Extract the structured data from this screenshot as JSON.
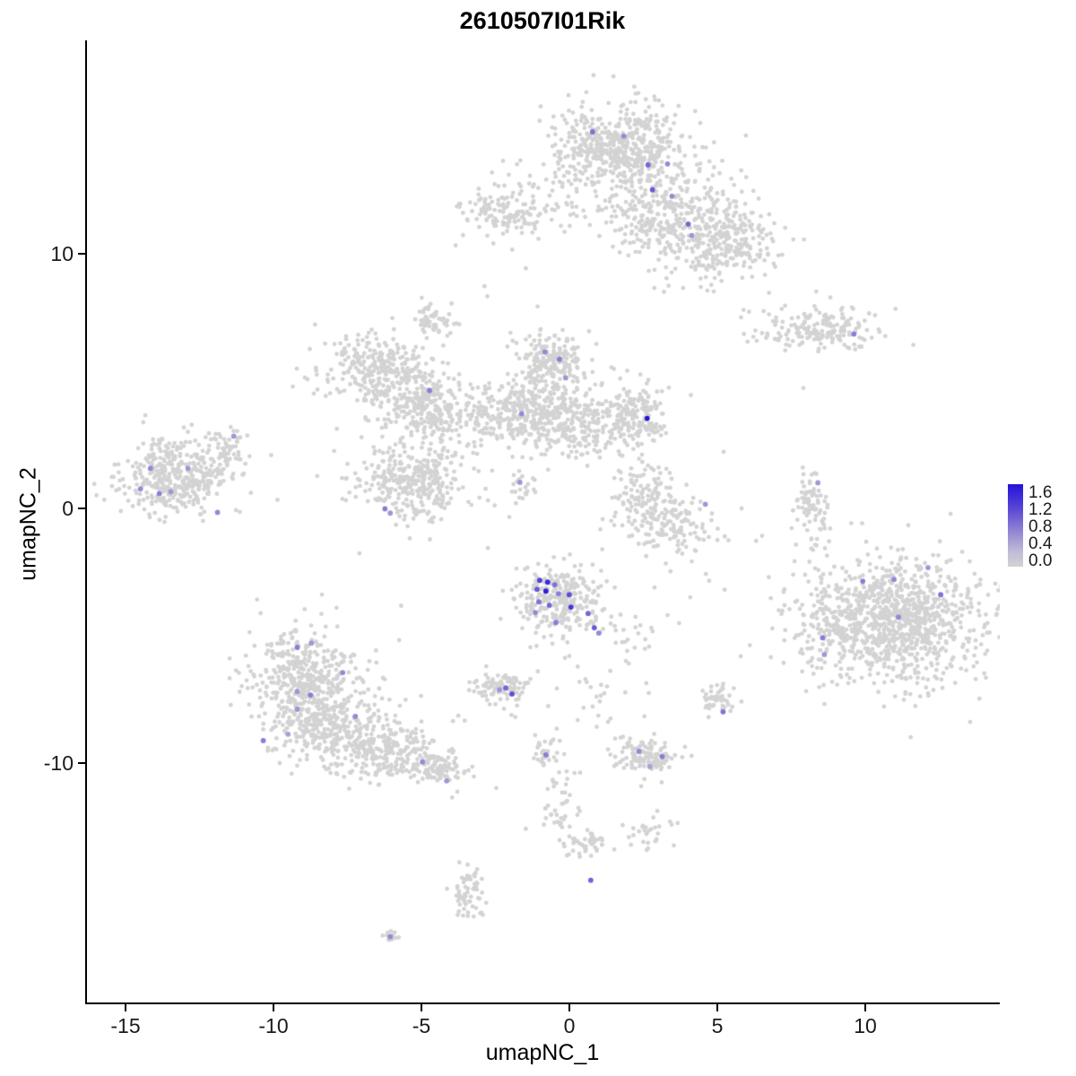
{
  "title": "2610507I01Rik",
  "axes": {
    "x": {
      "label": "umapNC_1",
      "tick_labels": [
        "-15",
        "-10",
        "-5",
        "0",
        "5",
        "10"
      ]
    },
    "y": {
      "label": "umapNC_2",
      "tick_labels": [
        "10",
        "0",
        "-10"
      ]
    }
  },
  "legend": {
    "labels": [
      "1.6",
      "1.2",
      "0.8",
      "0.4",
      "0.0"
    ],
    "min_value": 0.0,
    "max_value": 1.6,
    "min_color": "#D3D3D3",
    "max_color": "#2412D9"
  },
  "chart_data": {
    "type": "scatter",
    "title": "2610507I01Rik",
    "xlabel": "umapNC_1",
    "ylabel": "umapNC_2",
    "xlim": [
      -16.36,
      14.55
    ],
    "ylim": [
      -19.42,
      18.35
    ],
    "x_ticks": [
      -15,
      -10,
      -5,
      0,
      5,
      10
    ],
    "y_ticks": [
      -10,
      0,
      10
    ],
    "grid": false,
    "legend_position": "right",
    "color_scale": {
      "min": 0.0,
      "max": 1.6,
      "low": "#D3D3D3",
      "high": "#2412D9"
    },
    "point_color_zero": "#D3D3D3",
    "seed": 7,
    "clusters": [
      {
        "cx": 1.7,
        "cy": 14.2,
        "sx": 1.05,
        "sy": 0.85,
        "n": 520
      },
      {
        "cx": 3.7,
        "cy": 11.4,
        "sx": 1.25,
        "sy": 0.95,
        "n": 430
      },
      {
        "cx": 5.5,
        "cy": 10.3,
        "sx": 0.7,
        "sy": 0.65,
        "n": 170
      },
      {
        "cx": -2.2,
        "cy": 11.6,
        "sx": 0.85,
        "sy": 0.5,
        "n": 130
      },
      {
        "cx": 0.1,
        "cy": 12.4,
        "sx": 1.3,
        "sy": 0.8,
        "n": 70
      },
      {
        "cx": -4.6,
        "cy": 7.4,
        "sx": 0.4,
        "sy": 0.3,
        "n": 55
      },
      {
        "cx": -6.6,
        "cy": 5.6,
        "sx": 0.95,
        "sy": 0.6,
        "n": 270
      },
      {
        "cx": -5.2,
        "cy": 4.3,
        "sx": 0.85,
        "sy": 0.6,
        "n": 210
      },
      {
        "cx": -4.1,
        "cy": 3.4,
        "sx": 0.7,
        "sy": 0.5,
        "n": 110
      },
      {
        "cx": -0.6,
        "cy": 5.7,
        "sx": 0.6,
        "sy": 0.6,
        "n": 190
      },
      {
        "cx": -1.8,
        "cy": 3.9,
        "sx": 0.95,
        "sy": 0.7,
        "n": 290
      },
      {
        "cx": 0.7,
        "cy": 3.4,
        "sx": 1.2,
        "sy": 0.7,
        "n": 330
      },
      {
        "cx": 2.3,
        "cy": 3.7,
        "sx": 0.5,
        "sy": 0.5,
        "n": 90
      },
      {
        "cx": -5.3,
        "cy": 1.0,
        "sx": 1.0,
        "sy": 0.8,
        "n": 340
      },
      {
        "cx": -13.3,
        "cy": 1.2,
        "sx": 0.95,
        "sy": 0.7,
        "n": 380
      },
      {
        "cx": -11.9,
        "cy": 2.3,
        "sx": 0.5,
        "sy": 0.4,
        "n": 70
      },
      {
        "cx": 2.6,
        "cy": 0.7,
        "sx": 0.5,
        "sy": 0.55,
        "n": 90
      },
      {
        "cx": 3.5,
        "cy": -0.6,
        "sx": 0.8,
        "sy": 0.55,
        "n": 150
      },
      {
        "cx": 8.2,
        "cy": 0.0,
        "sx": 0.28,
        "sy": 0.85,
        "n": 85
      },
      {
        "cx": 8.4,
        "cy": 7.0,
        "sx": 1.1,
        "sy": 0.42,
        "n": 190
      },
      {
        "cx": 11.2,
        "cy": -4.4,
        "sx": 1.4,
        "sy": 1.2,
        "n": 950
      },
      {
        "cx": 8.8,
        "cy": -4.6,
        "sx": 0.7,
        "sy": 1.1,
        "n": 140
      },
      {
        "cx": -0.4,
        "cy": -3.6,
        "sx": 0.75,
        "sy": 0.68,
        "n": 270
      },
      {
        "cx": -2.3,
        "cy": -7.0,
        "sx": 0.5,
        "sy": 0.35,
        "n": 85
      },
      {
        "cx": -9.0,
        "cy": -6.6,
        "sx": 0.95,
        "sy": 0.9,
        "n": 380
      },
      {
        "cx": -8.2,
        "cy": -8.5,
        "sx": 1.05,
        "sy": 0.8,
        "n": 340
      },
      {
        "cx": -6.0,
        "cy": -9.6,
        "sx": 1.0,
        "sy": 0.55,
        "n": 240
      },
      {
        "cx": -4.5,
        "cy": -10.3,
        "sx": 0.45,
        "sy": 0.3,
        "n": 70
      },
      {
        "cx": 2.6,
        "cy": -9.8,
        "sx": 0.55,
        "sy": 0.4,
        "n": 125
      },
      {
        "cx": 5.0,
        "cy": -7.5,
        "sx": 0.28,
        "sy": 0.3,
        "n": 45
      },
      {
        "cx": -0.8,
        "cy": -9.6,
        "sx": 0.3,
        "sy": 0.3,
        "n": 35
      },
      {
        "cx": -0.3,
        "cy": -11.6,
        "sx": 0.35,
        "sy": 0.6,
        "n": 40
      },
      {
        "cx": 0.4,
        "cy": -13.2,
        "sx": 0.5,
        "sy": 0.3,
        "n": 45
      },
      {
        "cx": 2.6,
        "cy": -12.7,
        "sx": 0.4,
        "sy": 0.3,
        "n": 30
      },
      {
        "cx": -3.4,
        "cy": -15.1,
        "sx": 0.3,
        "sy": 0.55,
        "n": 65
      },
      {
        "cx": -6.1,
        "cy": -16.8,
        "sx": 0.16,
        "sy": 0.12,
        "n": 12
      },
      {
        "cx": -1.6,
        "cy": 0.9,
        "sx": 0.22,
        "sy": 0.35,
        "n": 22
      },
      {
        "cx": 0.8,
        "cy": -6.8,
        "sx": 0.9,
        "sy": 0.6,
        "n": 30
      },
      {
        "cx": 2.2,
        "cy": -4.9,
        "sx": 0.5,
        "sy": 0.5,
        "n": 20
      },
      {
        "cx": -1.0,
        "cy": -2.0,
        "sx": 7.5,
        "sy": 6.5,
        "n": 30,
        "uniform": true
      }
    ],
    "singles": [
      [
        -2.9,
        8.7
      ],
      [
        -2.8,
        8.3
      ],
      [
        -1.5,
        9.4
      ],
      [
        -1.1,
        7.9
      ],
      [
        3.8,
        -1.8
      ],
      [
        6.3,
        -1.3
      ],
      [
        6.5,
        -1.1
      ],
      [
        7.9,
        4.7
      ],
      [
        7.6,
        -2.1
      ],
      [
        -7.9,
        3.1
      ],
      [
        4.6,
        -2.6
      ],
      [
        5.2,
        2.2
      ],
      [
        -10.6,
        -3.6
      ],
      [
        -2.5,
        -11.0
      ],
      [
        0.9,
        -8.6
      ],
      [
        -1.5,
        -12.6
      ]
    ],
    "highlights": [
      {
        "x": 0.76,
        "y": 14.76,
        "v": 0.8
      },
      {
        "x": 1.82,
        "y": 14.59,
        "v": 0.6
      },
      {
        "x": 2.64,
        "y": 13.46,
        "v": 0.9
      },
      {
        "x": 3.3,
        "y": 13.5,
        "v": 0.6
      },
      {
        "x": 2.79,
        "y": 12.48,
        "v": 1.0
      },
      {
        "x": 3.45,
        "y": 12.23,
        "v": 0.6
      },
      {
        "x": 4.0,
        "y": 11.14,
        "v": 0.9
      },
      {
        "x": 4.12,
        "y": 10.69,
        "v": 0.5
      },
      {
        "x": 9.61,
        "y": 6.82,
        "v": 0.7
      },
      {
        "x": -4.76,
        "y": 4.6,
        "v": 0.7
      },
      {
        "x": -0.85,
        "y": 6.12,
        "v": 0.6
      },
      {
        "x": -0.36,
        "y": 5.83,
        "v": 0.7
      },
      {
        "x": -0.15,
        "y": 5.1,
        "v": 0.5
      },
      {
        "x": -1.64,
        "y": 3.69,
        "v": 0.6
      },
      {
        "x": 2.61,
        "y": 3.51,
        "v": 1.6
      },
      {
        "x": -1.7,
        "y": 1.0,
        "v": 0.5
      },
      {
        "x": -6.27,
        "y": -0.04,
        "v": 0.7
      },
      {
        "x": -6.09,
        "y": -0.21,
        "v": 0.5
      },
      {
        "x": -14.21,
        "y": 1.55,
        "v": 0.6
      },
      {
        "x": -12.94,
        "y": 1.55,
        "v": 0.5
      },
      {
        "x": -14.55,
        "y": 0.74,
        "v": 0.6
      },
      {
        "x": -13.91,
        "y": 0.56,
        "v": 0.7
      },
      {
        "x": -13.52,
        "y": 0.63,
        "v": 0.5
      },
      {
        "x": -11.94,
        "y": -0.18,
        "v": 0.6
      },
      {
        "x": -11.39,
        "y": 2.81,
        "v": 0.5
      },
      {
        "x": 4.58,
        "y": 0.14,
        "v": 0.5
      },
      {
        "x": 8.39,
        "y": 0.98,
        "v": 0.5
      },
      {
        "x": 9.91,
        "y": -2.88,
        "v": 0.7
      },
      {
        "x": 10.97,
        "y": -2.81,
        "v": 0.6
      },
      {
        "x": 12.12,
        "y": -2.35,
        "v": 0.5
      },
      {
        "x": 12.55,
        "y": -3.41,
        "v": 0.8
      },
      {
        "x": 11.12,
        "y": -4.29,
        "v": 0.6
      },
      {
        "x": 8.55,
        "y": -5.1,
        "v": 0.7
      },
      {
        "x": 8.61,
        "y": -5.76,
        "v": 0.5
      },
      {
        "x": -1.03,
        "y": -2.85,
        "v": 1.2
      },
      {
        "x": -0.76,
        "y": -2.92,
        "v": 1.4
      },
      {
        "x": -0.52,
        "y": -3.02,
        "v": 0.8
      },
      {
        "x": -1.12,
        "y": -3.2,
        "v": 1.0
      },
      {
        "x": -0.82,
        "y": -3.27,
        "v": 1.5
      },
      {
        "x": -0.39,
        "y": -3.37,
        "v": 0.7
      },
      {
        "x": -0.03,
        "y": -3.41,
        "v": 1.1
      },
      {
        "x": -1.06,
        "y": -3.69,
        "v": 0.8
      },
      {
        "x": -0.7,
        "y": -3.83,
        "v": 0.9
      },
      {
        "x": 0.03,
        "y": -3.9,
        "v": 1.3
      },
      {
        "x": 0.61,
        "y": -4.15,
        "v": 0.9
      },
      {
        "x": -1.18,
        "y": -4.11,
        "v": 0.6
      },
      {
        "x": -0.48,
        "y": -4.5,
        "v": 0.7
      },
      {
        "x": 0.82,
        "y": -4.71,
        "v": 1.0
      },
      {
        "x": 0.97,
        "y": -4.92,
        "v": 0.6
      },
      {
        "x": -2.18,
        "y": -7.07,
        "v": 0.9
      },
      {
        "x": -1.97,
        "y": -7.31,
        "v": 1.1
      },
      {
        "x": -2.39,
        "y": -7.14,
        "v": 0.5
      },
      {
        "x": -9.24,
        "y": -5.48,
        "v": 0.7
      },
      {
        "x": -8.76,
        "y": -5.31,
        "v": 0.5
      },
      {
        "x": -7.7,
        "y": -6.47,
        "v": 0.6
      },
      {
        "x": -9.24,
        "y": -7.21,
        "v": 0.5
      },
      {
        "x": -8.79,
        "y": -7.35,
        "v": 0.7
      },
      {
        "x": -9.24,
        "y": -7.91,
        "v": 0.5
      },
      {
        "x": -10.39,
        "y": -9.14,
        "v": 0.7
      },
      {
        "x": -9.55,
        "y": -8.89,
        "v": 0.4
      },
      {
        "x": -7.27,
        "y": -8.19,
        "v": 0.6
      },
      {
        "x": -5.0,
        "y": -9.98,
        "v": 0.6
      },
      {
        "x": -4.18,
        "y": -10.72,
        "v": 0.5
      },
      {
        "x": 2.33,
        "y": -9.56,
        "v": 0.6
      },
      {
        "x": 3.12,
        "y": -9.77,
        "v": 0.7
      },
      {
        "x": 2.7,
        "y": -10.16,
        "v": 0.4
      },
      {
        "x": 5.18,
        "y": -8.01,
        "v": 0.8
      },
      {
        "x": -0.82,
        "y": -9.7,
        "v": 0.7
      },
      {
        "x": 0.7,
        "y": -14.62,
        "v": 0.9
      },
      {
        "x": -6.09,
        "y": -16.84,
        "v": 0.6
      }
    ]
  }
}
